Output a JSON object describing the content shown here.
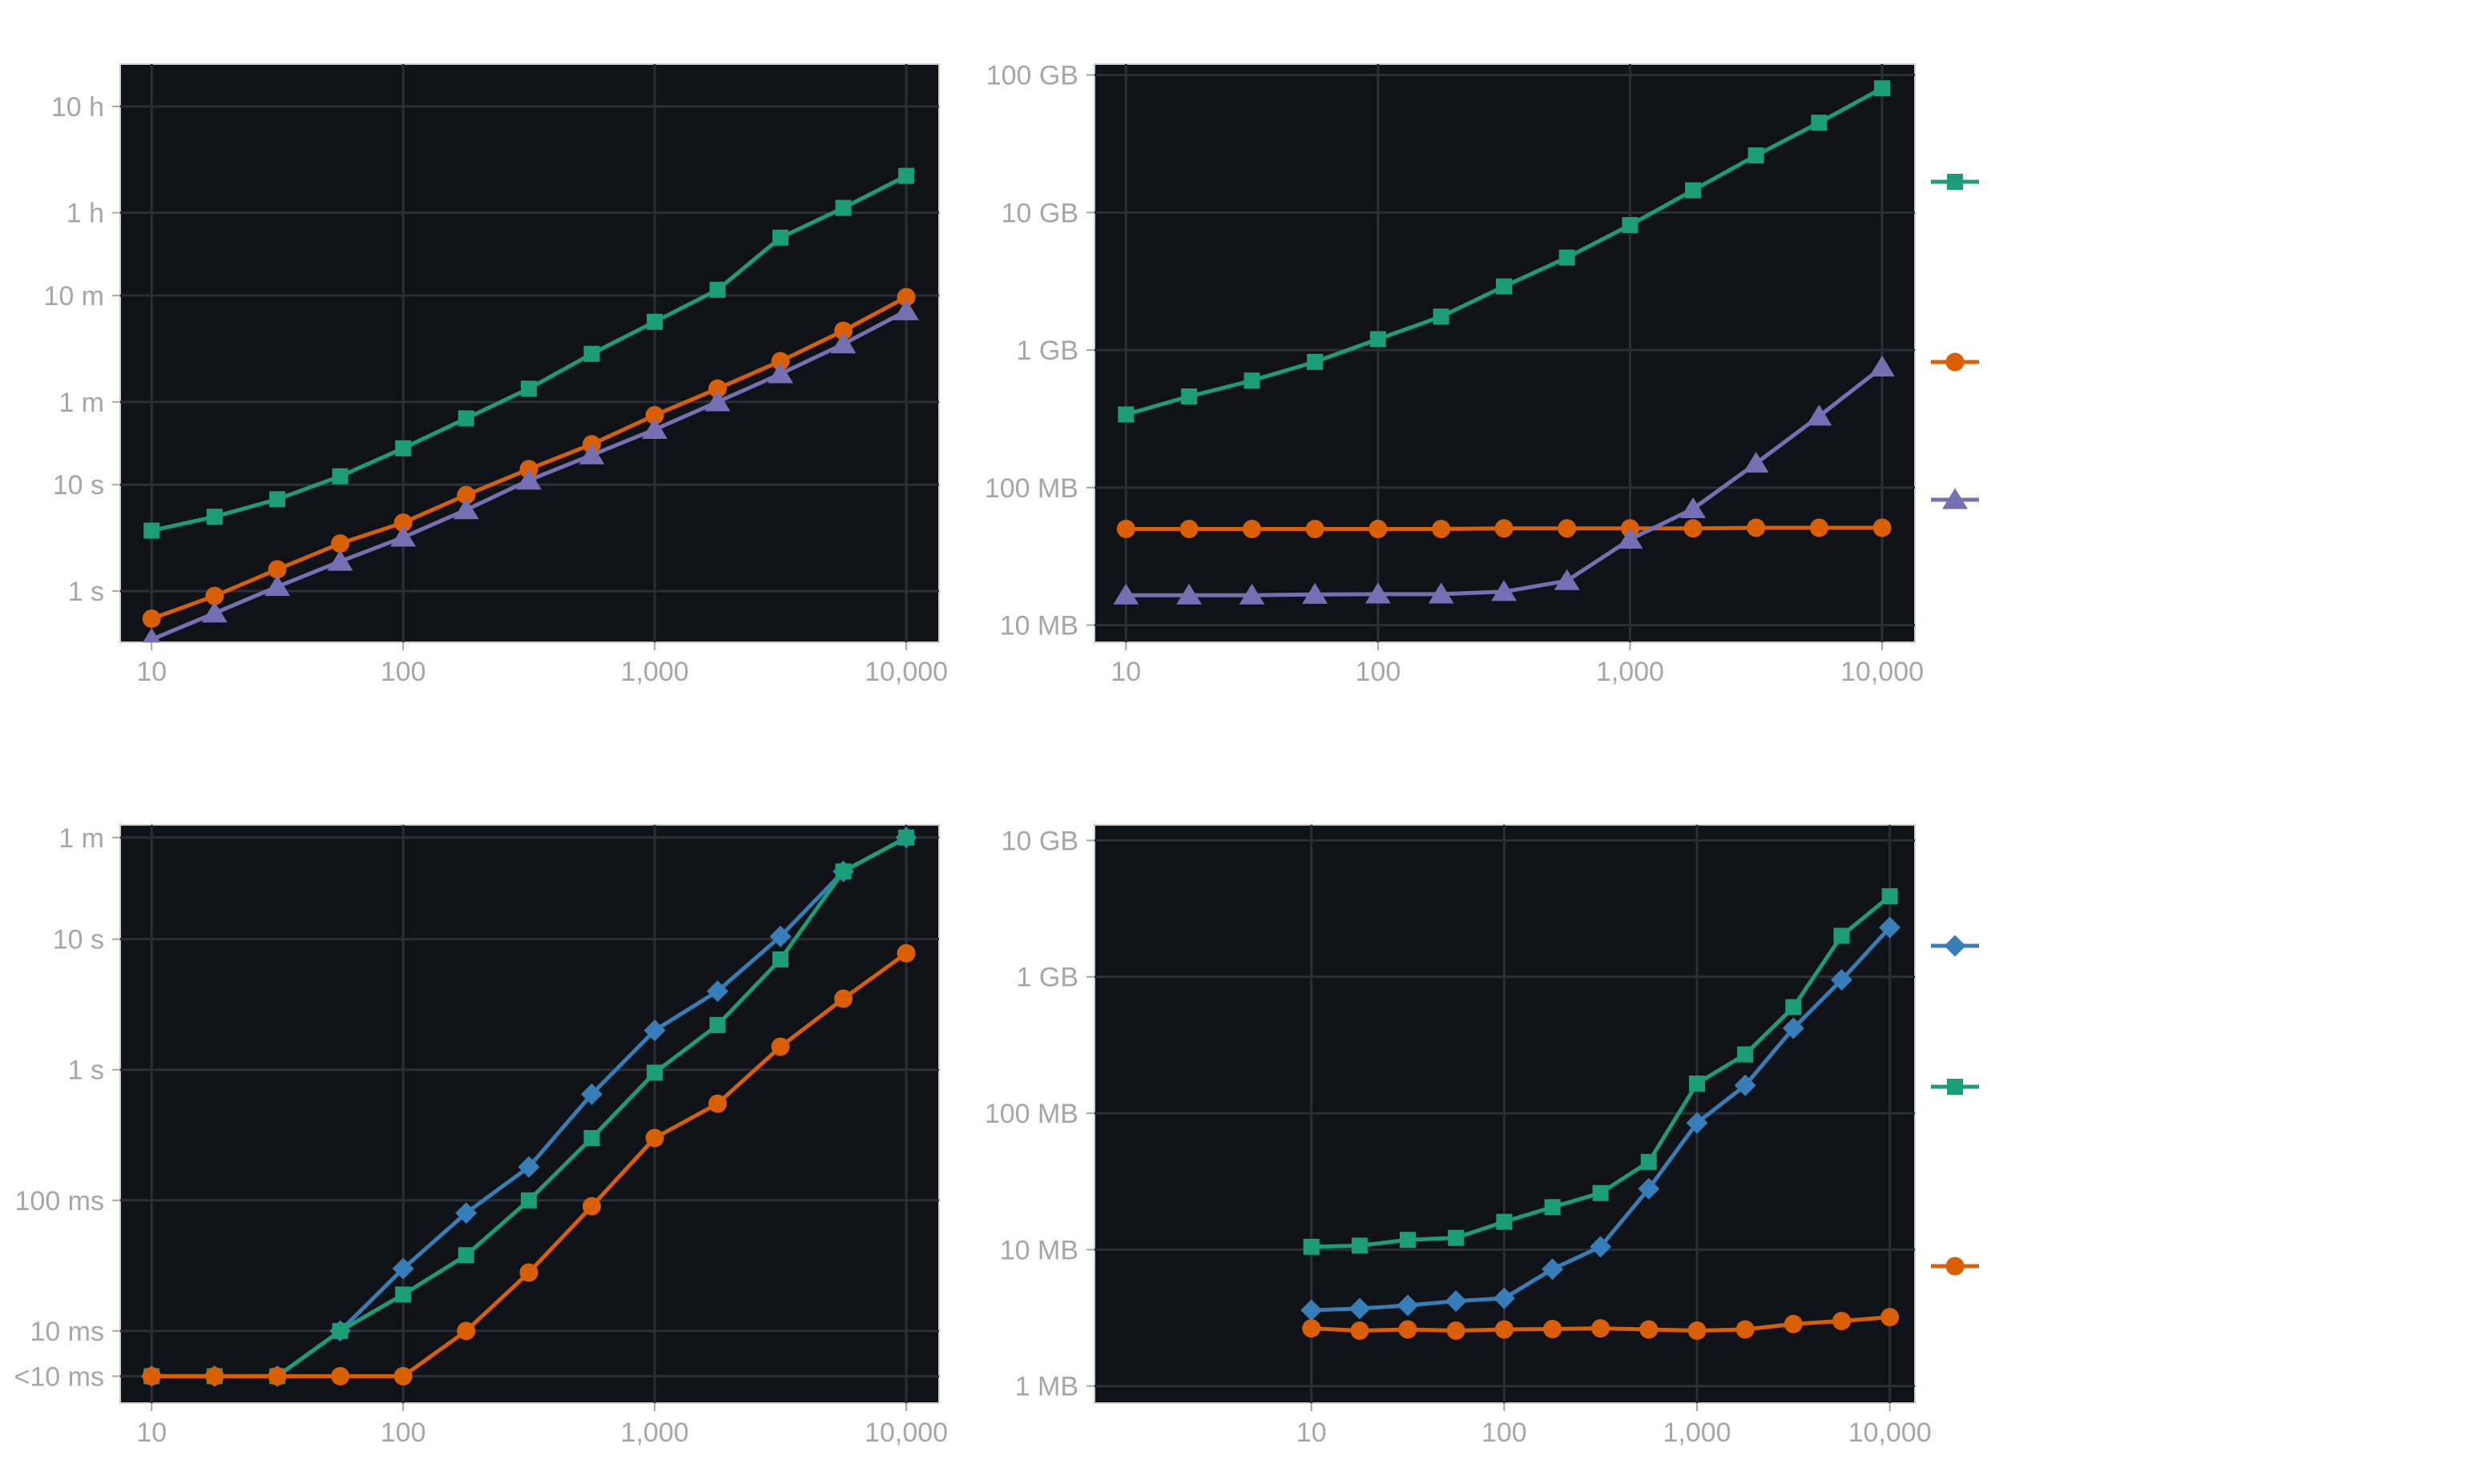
{
  "chart_data": [
    {
      "type": "line",
      "xscale": "log",
      "yscale": "log",
      "x": [
        10,
        17.8,
        31.6,
        56.2,
        100,
        178,
        316,
        562,
        1000,
        1778,
        3162,
        5623,
        10000
      ],
      "xticks": [
        10,
        100,
        1000,
        10000
      ],
      "xtick_labels": [
        "10",
        "100",
        "1,000",
        "10,000"
      ],
      "xlim": [
        7.5,
        13500
      ],
      "ylim": [
        0.33,
        90000
      ],
      "yticks": [
        1,
        10,
        60,
        600,
        3600,
        36000
      ],
      "ytick_labels": [
        "1 s",
        "10 s",
        "1 m",
        "10 m",
        "1 h",
        "10 h"
      ],
      "series": [
        {
          "color": "#1b9e77",
          "marker": "square",
          "values": [
            3.7,
            5.0,
            7.3,
            12,
            22,
            42,
            80,
            170,
            340,
            680,
            2100,
            4000,
            8000
          ]
        },
        {
          "color": "#d95f02",
          "marker": "circle",
          "values": [
            0.55,
            0.9,
            1.6,
            2.8,
            4.4,
            8.0,
            14,
            24,
            45,
            80,
            145,
            280,
            580
          ]
        },
        {
          "color": "#7570b3",
          "marker": "triangle",
          "values": [
            0.35,
            0.62,
            1.1,
            1.9,
            3.2,
            5.8,
            11,
            19,
            33,
            60,
            110,
            210,
            430
          ]
        }
      ],
      "grid": true,
      "legend": "none"
    },
    {
      "type": "line",
      "xscale": "log",
      "yscale": "log",
      "x": [
        10,
        17.8,
        31.6,
        56.2,
        100,
        178,
        316,
        562,
        1000,
        1778,
        3162,
        5623,
        10000
      ],
      "xticks": [
        10,
        100,
        1000,
        10000
      ],
      "xtick_labels": [
        "10",
        "100",
        "1,000",
        "10,000"
      ],
      "xlim": [
        7.5,
        13500
      ],
      "ylim": [
        7.5,
        120000
      ],
      "yticks": [
        10,
        100,
        1000,
        10000,
        100000
      ],
      "ytick_labels": [
        "10 MB",
        "100 MB",
        "1 GB",
        "10 GB",
        "100 GB"
      ],
      "series": [
        {
          "color": "#1b9e77",
          "marker": "square",
          "values": [
            340,
            460,
            600,
            820,
            1200,
            1750,
            2900,
            4700,
            8100,
            14500,
            26000,
            45000,
            80000
          ]
        },
        {
          "color": "#d95f02",
          "marker": "circle",
          "values": [
            50,
            50,
            50,
            50,
            50,
            50,
            50.5,
            50.5,
            50.5,
            50.5,
            51,
            51,
            51
          ]
        },
        {
          "color": "#7570b3",
          "marker": "triangle",
          "values": [
            16.5,
            16.5,
            16.5,
            16.7,
            16.8,
            16.8,
            17.5,
            21,
            42,
            70,
            150,
            330,
            750
          ]
        }
      ],
      "grid": true,
      "legend": "right"
    },
    {
      "type": "line",
      "xscale": "log",
      "yscale": "log",
      "x": [
        10,
        17.8,
        31.6,
        56.2,
        100,
        178,
        316,
        562,
        1000,
        1778,
        3162,
        5623,
        10000
      ],
      "xticks": [
        10,
        100,
        1000,
        10000
      ],
      "xtick_labels": [
        "10",
        "100",
        "1,000",
        "10,000"
      ],
      "xlim": [
        7.5,
        13500
      ],
      "ylim": [
        0.0028,
        75
      ],
      "yticks": [
        0.0045,
        0.01,
        0.1,
        1,
        10,
        60
      ],
      "ytick_labels": [
        "<10 ms",
        "10 ms",
        "100 ms",
        "1 s",
        "10 s",
        "1 m"
      ],
      "series": [
        {
          "color": "#377eb8",
          "marker": "diamond",
          "values": [
            0.0045,
            0.0045,
            0.0045,
            0.01,
            0.03,
            0.08,
            0.18,
            0.65,
            2.0,
            4.0,
            10.5,
            33,
            60
          ]
        },
        {
          "color": "#1b9e77",
          "marker": "square",
          "values": [
            0.0045,
            0.0045,
            0.0045,
            0.01,
            0.019,
            0.038,
            0.1,
            0.3,
            0.95,
            2.2,
            7.0,
            33,
            60
          ]
        },
        {
          "color": "#d95f02",
          "marker": "circle",
          "values": [
            0.0045,
            0.0045,
            0.0045,
            0.0045,
            0.0045,
            0.01,
            0.028,
            0.09,
            0.3,
            0.55,
            1.5,
            3.5,
            7.8
          ]
        }
      ],
      "grid": true,
      "legend": "none"
    },
    {
      "type": "line",
      "xscale": "log",
      "yscale": "log",
      "x": [
        10,
        17.8,
        31.6,
        56.2,
        100,
        178,
        316,
        562,
        1000,
        1778,
        3162,
        5623,
        10000
      ],
      "xticks": [
        10,
        100,
        1000,
        10000
      ],
      "xtick_labels": [
        "10",
        "100",
        "1,000",
        "10,000"
      ],
      "xlim": [
        0.75,
        13500
      ],
      "ylim": [
        0.75,
        13000
      ],
      "yticks": [
        1,
        10,
        100,
        1000,
        10000
      ],
      "ytick_labels": [
        "1 MB",
        "10 MB",
        "100 MB",
        "1 GB",
        "10 GB"
      ],
      "series": [
        {
          "color": "#377eb8",
          "marker": "diamond",
          "values": [
            3.6,
            3.7,
            3.9,
            4.2,
            4.4,
            7.2,
            10.5,
            28,
            85,
            160,
            420,
            950,
            2300
          ]
        },
        {
          "color": "#1b9e77",
          "marker": "square",
          "values": [
            10.5,
            10.7,
            11.8,
            12.2,
            16,
            20.5,
            26,
            44,
            165,
            270,
            600,
            2000,
            3900
          ]
        },
        {
          "color": "#d95f02",
          "marker": "circle",
          "values": [
            2.65,
            2.55,
            2.6,
            2.55,
            2.6,
            2.62,
            2.65,
            2.6,
            2.55,
            2.6,
            2.85,
            3.0,
            3.2
          ]
        }
      ],
      "grid": true,
      "legend": "right"
    }
  ],
  "legends": [
    {
      "entries": [
        {
          "color": "#1b9e77",
          "marker": "square"
        },
        {
          "color": "#d95f02",
          "marker": "circle"
        },
        {
          "color": "#7570b3",
          "marker": "triangle"
        }
      ]
    },
    {
      "entries": [
        {
          "color": "#377eb8",
          "marker": "diamond"
        },
        {
          "color": "#1b9e77",
          "marker": "square"
        },
        {
          "color": "#d95f02",
          "marker": "circle"
        }
      ]
    }
  ],
  "colors": {
    "panel_bg": "#0f1216",
    "grid": "#2a2f36",
    "tick_text": "#a6a6a6",
    "frame": "#d0d0d0"
  }
}
